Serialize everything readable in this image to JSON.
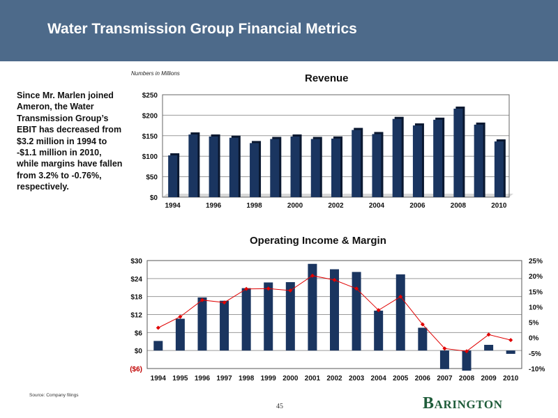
{
  "header": {
    "title": "Water Transmission Group Financial Metrics"
  },
  "units_note": "Numbers in Millions",
  "side_text": "Since Mr. Marlen joined Ameron, the Water Transmission Group’s EBIT has decreased from $3.2 million in 1994 to -$1.1 million in 2010, while margins have fallen from 3.2% to -0.76%, respectively.",
  "footer": {
    "source": "Source:   Company filings",
    "page_number": "45",
    "logo_first": "B",
    "logo_rest": "ARINGTON"
  },
  "colors": {
    "header_bg": "#4d6a8a",
    "bar": "#1a3560",
    "bar_shadow": "#0a1830",
    "margin_line": "#e00000",
    "logo": "#1f5c3a"
  },
  "chart_data": [
    {
      "type": "bar",
      "title": "Revenue",
      "categories": [
        "1994",
        "1995",
        "1996",
        "1997",
        "1998",
        "1999",
        "2000",
        "2001",
        "2002",
        "2003",
        "2004",
        "2005",
        "2006",
        "2007",
        "2008",
        "2009",
        "2010"
      ],
      "x_tick_labels": [
        "1994",
        "1996",
        "1998",
        "2000",
        "2002",
        "2004",
        "2006",
        "2008",
        "2010"
      ],
      "values": [
        102,
        153,
        148,
        145,
        132,
        142,
        148,
        142,
        143,
        164,
        154,
        191,
        175,
        189,
        216,
        177,
        136
      ],
      "ylim": [
        0,
        250
      ],
      "y_ticks": [
        0,
        50,
        100,
        150,
        200,
        250
      ],
      "y_tick_labels": [
        "$0",
        "$50",
        "$100",
        "$150",
        "$200",
        "$250"
      ],
      "grid": true
    },
    {
      "type": "bar",
      "title": "Operating Income & Margin",
      "categories": [
        "1994",
        "1995",
        "1996",
        "1997",
        "1998",
        "1999",
        "2000",
        "2001",
        "2002",
        "2003",
        "2004",
        "2005",
        "2006",
        "2007",
        "2008",
        "2009",
        "2010"
      ],
      "series": [
        {
          "type": "bar",
          "axis": "left",
          "values": [
            3.2,
            10.6,
            17.7,
            16.6,
            20.8,
            22.7,
            22.8,
            28.9,
            27.1,
            26.2,
            13.3,
            25.4,
            7.6,
            -6.2,
            -6.7,
            1.9,
            -1.1
          ]
        },
        {
          "type": "line",
          "axis": "right",
          "values": [
            3.2,
            6.8,
            12.2,
            11.4,
            15.8,
            15.9,
            15.3,
            20.1,
            18.7,
            15.9,
            8.9,
            13.3,
            4.3,
            -3.5,
            -4.4,
            1.0,
            -0.76
          ]
        }
      ],
      "ylim_left": [
        -6,
        30
      ],
      "y_ticks_left": [
        -6,
        0,
        6,
        12,
        18,
        24,
        30
      ],
      "y_tick_labels_left": [
        "($6)",
        "$0",
        "$6",
        "$12",
        "$18",
        "$24",
        "$30"
      ],
      "ylim_right": [
        -10,
        25
      ],
      "y_ticks_right": [
        -10,
        -5,
        0,
        5,
        10,
        15,
        20,
        25
      ],
      "y_tick_labels_right": [
        "-10%",
        "-5%",
        "0%",
        "5%",
        "10%",
        "15%",
        "20%",
        "25%"
      ],
      "grid": true
    }
  ]
}
